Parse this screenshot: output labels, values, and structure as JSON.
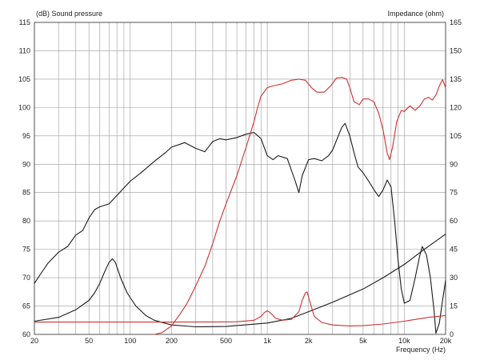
{
  "chart_data": {
    "type": "line",
    "x_scale": "log",
    "x_range": [
      20,
      20000
    ],
    "x_ticks": [
      {
        "value": 20,
        "label": "20"
      },
      {
        "value": 50,
        "label": "50"
      },
      {
        "value": 100,
        "label": "100"
      },
      {
        "value": 200,
        "label": "200"
      },
      {
        "value": 500,
        "label": "500"
      },
      {
        "value": 1000,
        "label": "1k"
      },
      {
        "value": 2000,
        "label": "2k"
      },
      {
        "value": 5000,
        "label": "5k"
      },
      {
        "value": 10000,
        "label": "10k"
      },
      {
        "value": 20000,
        "label": "20k"
      }
    ],
    "x_label": "Frequency  (Hz)",
    "y_left": {
      "label": "(dB)  Sound pressure",
      "range": [
        60,
        115
      ],
      "ticks": [
        60,
        65,
        70,
        75,
        80,
        85,
        90,
        95,
        100,
        105,
        110,
        115
      ]
    },
    "y_right": {
      "label": "Impedance  (ohm)",
      "range": [
        0,
        165
      ],
      "ticks": [
        0,
        15,
        30,
        45,
        60,
        75,
        90,
        105,
        120,
        135,
        150,
        165
      ]
    },
    "grid": true,
    "colors": {
      "black_series": "#1a1a1a",
      "red_series": "#d03030",
      "grid": "#9a9a9a"
    },
    "series": [
      {
        "id": "spl_black",
        "color": "#1a1a1a",
        "axis": "left",
        "points": [
          [
            20,
            69
          ],
          [
            22,
            70.5
          ],
          [
            25,
            72.5
          ],
          [
            30,
            74.5
          ],
          [
            35,
            75.5
          ],
          [
            40,
            77.5
          ],
          [
            45,
            78.3
          ],
          [
            50,
            80.5
          ],
          [
            55,
            82
          ],
          [
            60,
            82.5
          ],
          [
            70,
            83
          ],
          [
            80,
            84.5
          ],
          [
            100,
            87
          ],
          [
            120,
            88.5
          ],
          [
            150,
            90.5
          ],
          [
            180,
            92
          ],
          [
            200,
            93
          ],
          [
            250,
            93.8
          ],
          [
            300,
            92.8
          ],
          [
            350,
            92.2
          ],
          [
            400,
            94
          ],
          [
            450,
            94.5
          ],
          [
            500,
            94.3
          ],
          [
            600,
            94.7
          ],
          [
            700,
            95.3
          ],
          [
            800,
            95.6
          ],
          [
            900,
            94.5
          ],
          [
            1000,
            91.5
          ],
          [
            1100,
            90.8
          ],
          [
            1200,
            91.5
          ],
          [
            1400,
            91
          ],
          [
            1600,
            87
          ],
          [
            1700,
            85
          ],
          [
            1800,
            88
          ],
          [
            2000,
            90.8
          ],
          [
            2200,
            91
          ],
          [
            2500,
            90.6
          ],
          [
            2800,
            91.5
          ],
          [
            3000,
            92.5
          ],
          [
            3300,
            95
          ],
          [
            3500,
            96.5
          ],
          [
            3700,
            97.2
          ],
          [
            4000,
            95
          ],
          [
            4300,
            92
          ],
          [
            4600,
            89.5
          ],
          [
            5000,
            88.5
          ],
          [
            5500,
            87
          ],
          [
            6000,
            85.5
          ],
          [
            6500,
            84.3
          ],
          [
            7000,
            85.5
          ],
          [
            7500,
            87.2
          ],
          [
            8000,
            86
          ],
          [
            8500,
            80
          ],
          [
            9000,
            73
          ],
          [
            9500,
            68
          ],
          [
            10000,
            65.5
          ],
          [
            11000,
            66
          ],
          [
            12000,
            70
          ],
          [
            13000,
            74
          ],
          [
            13500,
            75.5
          ],
          [
            14500,
            74
          ],
          [
            15500,
            70
          ],
          [
            16500,
            64
          ],
          [
            17000,
            60.2
          ],
          [
            18000,
            62
          ],
          [
            19000,
            66
          ],
          [
            20000,
            69.5
          ]
        ]
      },
      {
        "id": "impedance_black",
        "color": "#1a1a1a",
        "axis": "right",
        "points": [
          [
            20,
            7
          ],
          [
            30,
            9
          ],
          [
            40,
            13
          ],
          [
            50,
            18
          ],
          [
            55,
            22
          ],
          [
            60,
            27
          ],
          [
            65,
            33
          ],
          [
            70,
            38
          ],
          [
            74,
            40
          ],
          [
            78,
            38
          ],
          [
            85,
            30
          ],
          [
            95,
            22
          ],
          [
            110,
            15
          ],
          [
            130,
            10
          ],
          [
            150,
            7.5
          ],
          [
            200,
            5
          ],
          [
            300,
            4
          ],
          [
            500,
            4.2
          ],
          [
            1000,
            6
          ],
          [
            1500,
            8.5
          ],
          [
            2000,
            12
          ],
          [
            3000,
            17
          ],
          [
            5000,
            24
          ],
          [
            7000,
            30
          ],
          [
            10000,
            37
          ],
          [
            14000,
            45
          ],
          [
            20000,
            53
          ]
        ]
      },
      {
        "id": "spl_red",
        "color": "#d03030",
        "axis": "left",
        "points": [
          [
            150,
            60
          ],
          [
            170,
            60.3
          ],
          [
            200,
            61.5
          ],
          [
            230,
            63.5
          ],
          [
            260,
            65.5
          ],
          [
            300,
            68.5
          ],
          [
            350,
            72
          ],
          [
            400,
            76
          ],
          [
            450,
            80
          ],
          [
            500,
            83
          ],
          [
            600,
            88
          ],
          [
            700,
            93
          ],
          [
            800,
            97.5
          ],
          [
            850,
            100
          ],
          [
            900,
            102
          ],
          [
            1000,
            103.5
          ],
          [
            1100,
            103.8
          ],
          [
            1300,
            104.2
          ],
          [
            1500,
            104.8
          ],
          [
            1700,
            105
          ],
          [
            1900,
            104.8
          ],
          [
            2100,
            103.5
          ],
          [
            2300,
            102.7
          ],
          [
            2600,
            102.7
          ],
          [
            2900,
            103.8
          ],
          [
            3200,
            105.2
          ],
          [
            3500,
            105.3
          ],
          [
            3800,
            105
          ],
          [
            4000,
            103.5
          ],
          [
            4300,
            101
          ],
          [
            4700,
            100.5
          ],
          [
            5000,
            101.5
          ],
          [
            5500,
            101.5
          ],
          [
            6000,
            101
          ],
          [
            6500,
            99
          ],
          [
            7000,
            96
          ],
          [
            7500,
            92
          ],
          [
            7800,
            90.8
          ],
          [
            8200,
            93
          ],
          [
            8800,
            97.5
          ],
          [
            9500,
            99.5
          ],
          [
            10000,
            99.3
          ],
          [
            11000,
            100.3
          ],
          [
            12000,
            99.5
          ],
          [
            13000,
            100.3
          ],
          [
            14000,
            101.5
          ],
          [
            15000,
            101.8
          ],
          [
            16000,
            101.3
          ],
          [
            17000,
            102.2
          ],
          [
            18000,
            103.8
          ],
          [
            19000,
            104.9
          ],
          [
            20000,
            103.5
          ]
        ]
      },
      {
        "id": "impedance_red",
        "color": "#d03030",
        "axis": "right",
        "points": [
          [
            20,
            6.5
          ],
          [
            50,
            6.5
          ],
          [
            100,
            6.5
          ],
          [
            200,
            6.5
          ],
          [
            400,
            6.6
          ],
          [
            600,
            6.7
          ],
          [
            800,
            7.5
          ],
          [
            900,
            9.5
          ],
          [
            950,
            11.5
          ],
          [
            1000,
            12.5
          ],
          [
            1050,
            11.5
          ],
          [
            1150,
            8.5
          ],
          [
            1300,
            7.5
          ],
          [
            1500,
            8
          ],
          [
            1700,
            12
          ],
          [
            1800,
            18
          ],
          [
            1900,
            22
          ],
          [
            1950,
            22.5
          ],
          [
            2050,
            17
          ],
          [
            2200,
            9.5
          ],
          [
            2500,
            6.3
          ],
          [
            3000,
            5
          ],
          [
            4000,
            4.5
          ],
          [
            5000,
            4.6
          ],
          [
            7000,
            5.5
          ],
          [
            10000,
            7
          ],
          [
            15000,
            9
          ],
          [
            20000,
            10
          ]
        ]
      }
    ]
  }
}
